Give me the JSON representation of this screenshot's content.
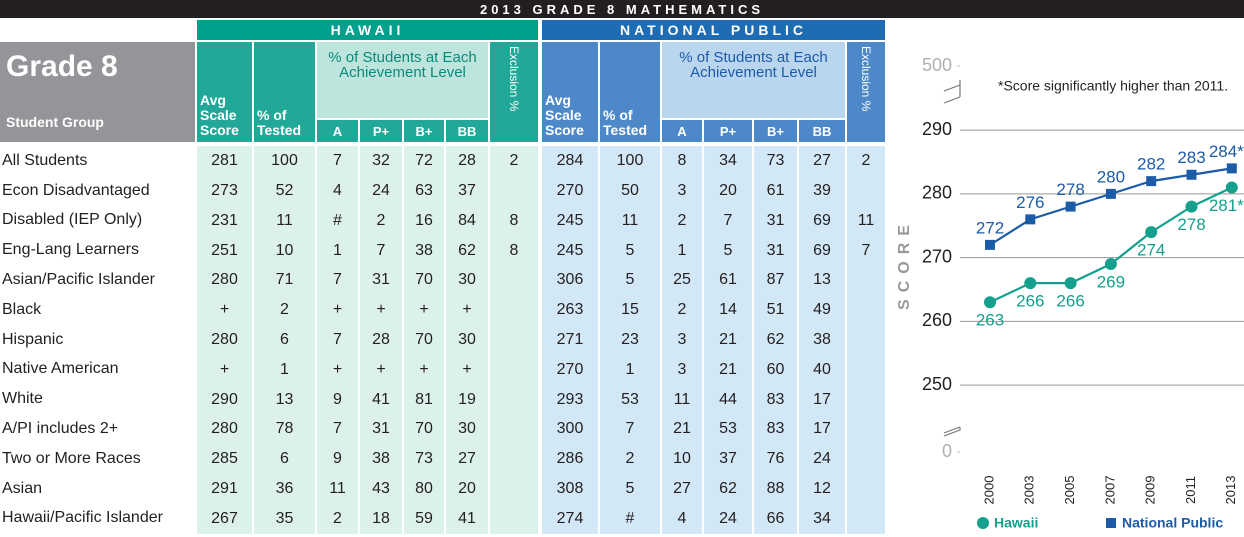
{
  "header": {
    "title": "2013 GRADE 8 MATHEMATICS"
  },
  "table": {
    "title": "Grade 8",
    "row_header": "Student Group",
    "groups": [
      "HAWAII",
      "NATIONAL PUBLIC"
    ],
    "columns": [
      "Avg Scale Score",
      "% of Tested",
      "A",
      "P+",
      "B+",
      "BB",
      "Exclusion %"
    ],
    "level_header": "% of Students at Each Achievement Level",
    "rows": [
      {
        "group": "All Students",
        "values": [
          [
            281,
            100,
            7,
            32,
            72,
            28,
            2
          ],
          [
            284,
            100,
            8,
            34,
            73,
            27,
            2
          ]
        ]
      },
      {
        "group": "Econ Disadvantaged",
        "values": [
          [
            273,
            52,
            4,
            24,
            63,
            37,
            null
          ],
          [
            270,
            50,
            3,
            20,
            61,
            39,
            null
          ]
        ]
      },
      {
        "group": "Disabled (IEP Only)",
        "values": [
          [
            231,
            11,
            "#",
            2,
            16,
            84,
            8
          ],
          [
            245,
            11,
            2,
            7,
            31,
            69,
            11
          ]
        ]
      },
      {
        "group": "Eng-Lang Learners",
        "values": [
          [
            251,
            10,
            1,
            7,
            38,
            62,
            8
          ],
          [
            245,
            5,
            1,
            5,
            31,
            69,
            7
          ]
        ]
      },
      {
        "group": "Asian/Pacific Islander",
        "values": [
          [
            280,
            71,
            7,
            31,
            70,
            30,
            null
          ],
          [
            306,
            5,
            25,
            61,
            87,
            13,
            null
          ]
        ]
      },
      {
        "group": "Black",
        "values": [
          [
            "+",
            2,
            "+",
            "+",
            "+",
            "+",
            null
          ],
          [
            263,
            15,
            2,
            14,
            51,
            49,
            null
          ]
        ]
      },
      {
        "group": "Hispanic",
        "values": [
          [
            280,
            6,
            7,
            28,
            70,
            30,
            null
          ],
          [
            271,
            23,
            3,
            21,
            62,
            38,
            null
          ]
        ]
      },
      {
        "group": "Native American",
        "values": [
          [
            "+",
            1,
            "+",
            "+",
            "+",
            "+",
            null
          ],
          [
            270,
            1,
            3,
            21,
            60,
            40,
            null
          ]
        ]
      },
      {
        "group": "White",
        "values": [
          [
            290,
            13,
            9,
            41,
            81,
            19,
            null
          ],
          [
            293,
            53,
            11,
            44,
            83,
            17,
            null
          ]
        ]
      },
      {
        "group": "A/PI includes 2+",
        "values": [
          [
            280,
            78,
            7,
            31,
            70,
            30,
            null
          ],
          [
            300,
            7,
            21,
            53,
            83,
            17,
            null
          ]
        ]
      },
      {
        "group": "Two or More Races",
        "values": [
          [
            285,
            6,
            9,
            38,
            73,
            27,
            null
          ],
          [
            286,
            2,
            10,
            37,
            76,
            24,
            null
          ]
        ]
      },
      {
        "group": "Asian",
        "values": [
          [
            291,
            36,
            11,
            43,
            80,
            20,
            null
          ],
          [
            308,
            5,
            27,
            62,
            88,
            12,
            null
          ]
        ]
      },
      {
        "group": "Hawaii/Pacific Islander",
        "values": [
          [
            267,
            35,
            2,
            18,
            59,
            41,
            null
          ],
          [
            274,
            "#",
            4,
            24,
            66,
            34,
            null
          ]
        ]
      }
    ]
  },
  "chart_data": {
    "type": "line",
    "annotation": "*Score significantly higher than 2011.",
    "y_label": "SCORE",
    "categories": [
      "2000",
      "2003",
      "2005",
      "2007",
      "2009",
      "2011",
      "2013"
    ],
    "series": [
      {
        "name": "Hawaii",
        "color": "#13a08d",
        "marker": "circle",
        "values": [
          263,
          266,
          266,
          269,
          274,
          278,
          281
        ],
        "value_labels": [
          "263",
          "266",
          "266",
          "269",
          "274",
          "278",
          "281*"
        ]
      },
      {
        "name": "National Public",
        "color": "#1c5ba8",
        "marker": "square",
        "values": [
          272,
          276,
          278,
          280,
          282,
          283,
          284
        ],
        "value_labels": [
          "272",
          "276",
          "278",
          "280",
          "282",
          "283",
          "284*"
        ]
      }
    ],
    "ylim": [
      245,
      293
    ],
    "yticks": [
      0,
      250,
      260,
      270,
      280,
      290,
      500
    ],
    "axis_break": true,
    "grid": true,
    "legend": "bottom"
  }
}
